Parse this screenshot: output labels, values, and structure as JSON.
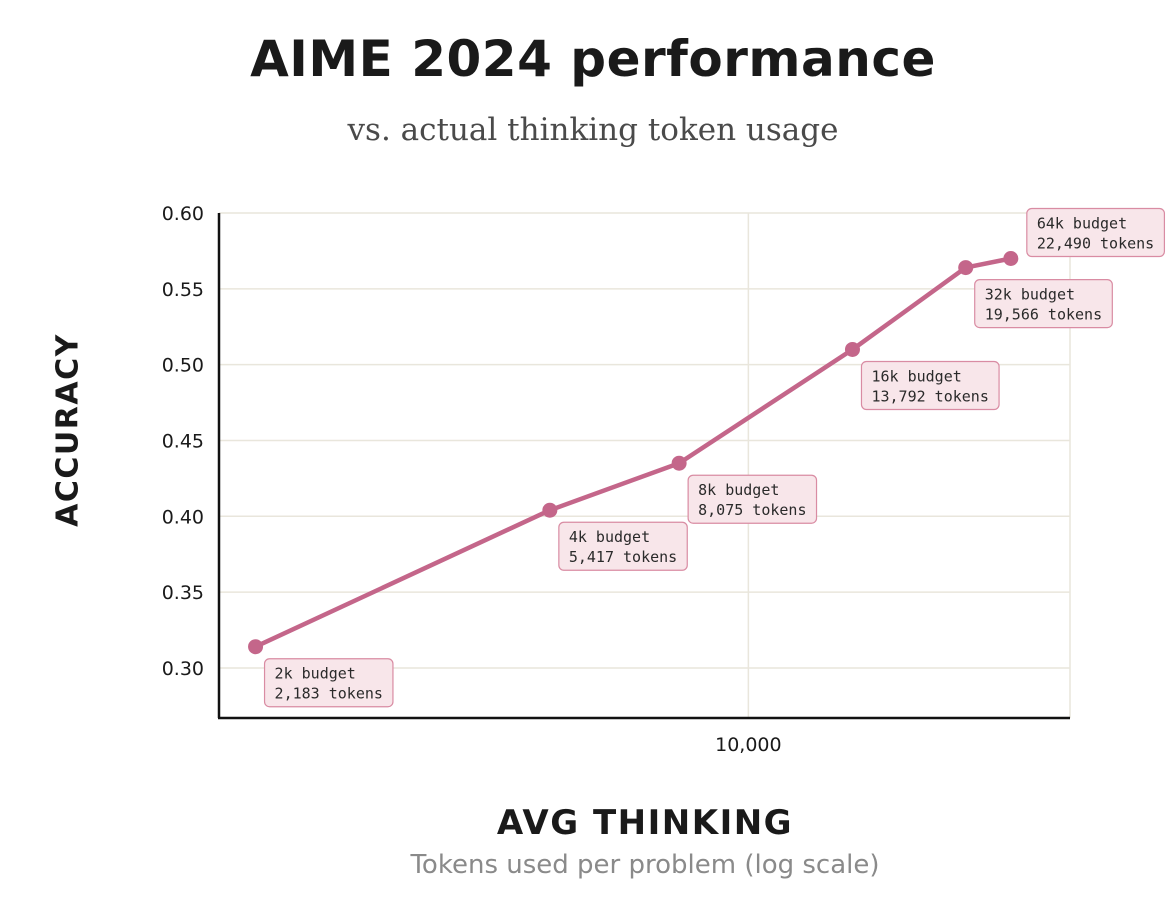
{
  "chart_data": {
    "type": "line",
    "title": "AIME 2024 performance",
    "subtitle": "vs. actual thinking token usage",
    "ylabel": "ACCURACY",
    "xlabel": "AVG THINKING",
    "xlabel_sub": "Tokens used per problem (log scale)",
    "x_scale": "log",
    "xlim": [
      1950,
      27000
    ],
    "ylim": [
      0.267,
      0.6
    ],
    "y_ticks": [
      0.6,
      0.55,
      0.5,
      0.45,
      0.4,
      0.35,
      0.3
    ],
    "y_tick_labels": [
      "0.60",
      "0.55",
      "0.50",
      "0.45",
      "0.40",
      "0.35",
      "0.30"
    ],
    "x_ticks": [
      10000
    ],
    "x_tick_labels": [
      "10,000"
    ],
    "grid": true,
    "line_color": "#c4668a",
    "point_color": "#c4668a",
    "label_bg": "#f8e6ea",
    "label_border": "#d98ca3",
    "series": [
      {
        "points": [
          {
            "x": 2183,
            "y": 0.314,
            "label1": "2k budget",
            "label2": "2,183 tokens"
          },
          {
            "x": 5417,
            "y": 0.404,
            "label1": "4k budget",
            "label2": "5,417 tokens"
          },
          {
            "x": 8075,
            "y": 0.435,
            "label1": "8k budget",
            "label2": "8,075 tokens"
          },
          {
            "x": 13792,
            "y": 0.51,
            "label1": "16k budget",
            "label2": "13,792 tokens"
          },
          {
            "x": 19566,
            "y": 0.564,
            "label1": "32k budget",
            "label2": "19,566 tokens"
          },
          {
            "x": 22490,
            "y": 0.57,
            "label1": "64k budget",
            "label2": "22,490 tokens"
          }
        ]
      }
    ]
  }
}
